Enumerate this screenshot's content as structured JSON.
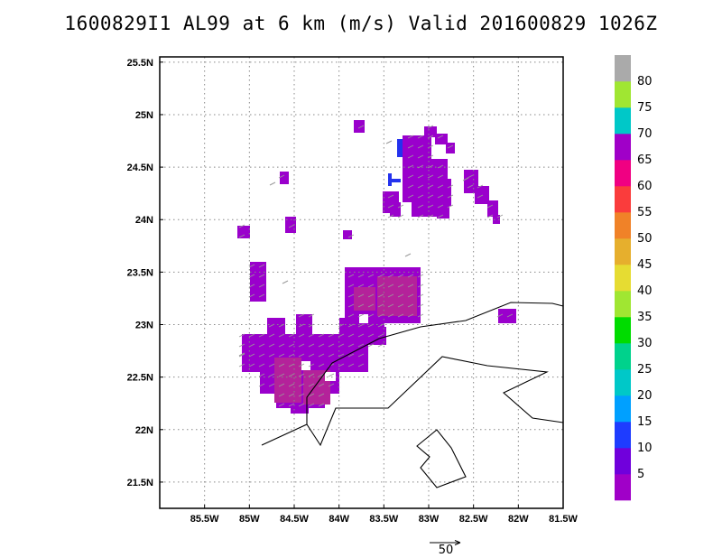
{
  "title": "1600829I1 AL99 at 6 km (m/s) Valid 201600829 1026Z",
  "colors": {
    "cell_low": "#9a00cc",
    "cell_high": "#b4229a",
    "cell_mid": "#7d10d8",
    "cell_blue": "#2432ee",
    "coast": "#000000",
    "grid": "#888888",
    "vector": "#9a9a9a"
  },
  "chart_data": {
    "type": "heatmap",
    "title": "1600829I1 AL99 at 6 km (m/s) Valid 201600829 1026Z",
    "xlabel": "",
    "ylabel": "",
    "xlim": [
      -86.0,
      -81.5
    ],
    "ylim": [
      21.25,
      25.55
    ],
    "grid": true,
    "x_ticks": [
      {
        "value": -85.5,
        "label": "85.5W"
      },
      {
        "value": -85.0,
        "label": "85W"
      },
      {
        "value": -84.5,
        "label": "84.5W"
      },
      {
        "value": -84.0,
        "label": "84W"
      },
      {
        "value": -83.5,
        "label": "83.5W"
      },
      {
        "value": -83.0,
        "label": "83W"
      },
      {
        "value": -82.5,
        "label": "82.5W"
      },
      {
        "value": -82.0,
        "label": "82W"
      },
      {
        "value": -81.5,
        "label": "81.5W"
      }
    ],
    "y_ticks": [
      {
        "value": 21.5,
        "label": "21.5N"
      },
      {
        "value": 22.0,
        "label": "22N"
      },
      {
        "value": 22.5,
        "label": "22.5N"
      },
      {
        "value": 23.0,
        "label": "23N"
      },
      {
        "value": 23.5,
        "label": "23.5N"
      },
      {
        "value": 24.0,
        "label": "24N"
      },
      {
        "value": 24.5,
        "label": "24.5N"
      },
      {
        "value": 25.0,
        "label": "25N"
      },
      {
        "value": 25.5,
        "label": "25.5N"
      }
    ],
    "colorbar": {
      "levels": [
        "5",
        "10",
        "15",
        "20",
        "25",
        "30",
        "35",
        "40",
        "45",
        "50",
        "55",
        "60",
        "65",
        "70",
        "75",
        "80"
      ],
      "colors": [
        "#a000c8",
        "#7000dc",
        "#1e3cff",
        "#00a0ff",
        "#00c8c8",
        "#00d28c",
        "#00dc00",
        "#a0e632",
        "#e6dc32",
        "#e6af2d",
        "#f08228",
        "#fa3c3c",
        "#f00082",
        "#a000c8",
        "#00c8c8",
        "#a0e632",
        "#aaaaaa"
      ]
    },
    "wind_speed_regions_ms": [
      {
        "lon": [
          -84.9,
          -84.5
        ],
        "lat": [
          22.35,
          22.85
        ],
        "speed": "<5"
      },
      {
        "lon": [
          -84.6,
          -84.05
        ],
        "lat": [
          22.15,
          22.55
        ],
        "speed": "5-10"
      },
      {
        "lon": [
          -83.85,
          -83.35
        ],
        "lat": [
          22.9,
          23.5
        ],
        "speed": "5-10"
      },
      {
        "lon": [
          -83.6,
          -83.1
        ],
        "lat": [
          23.05,
          23.45
        ],
        "speed": "<5"
      },
      {
        "lon": [
          -83.1,
          -82.8
        ],
        "lat": [
          24.0,
          24.65
        ],
        "speed": "<5"
      },
      {
        "lon": [
          -83.2,
          -83.15
        ],
        "lat": [
          24.5,
          24.7
        ],
        "speed": "10-15"
      },
      {
        "lon": [
          -83.3,
          -83.25
        ],
        "lat": [
          24.25,
          24.35
        ],
        "speed": "10-15"
      },
      {
        "lon": [
          -82.05,
          -81.95
        ],
        "lat": [
          22.95,
          23.05
        ],
        "speed": "<5"
      }
    ],
    "vector_reference": {
      "label": "50",
      "units": "m/s"
    }
  }
}
